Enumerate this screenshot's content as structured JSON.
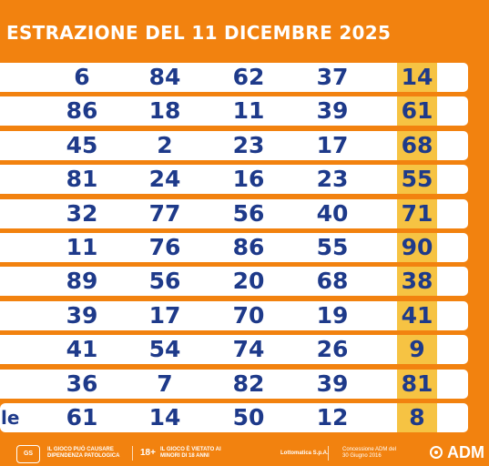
{
  "title": "ESTRAZIONE DEL 11 DICEMBRE 2025",
  "rows": [
    {
      "label": "",
      "numbers": [
        "6",
        "84",
        "62",
        "37"
      ],
      "highlight": "14"
    },
    {
      "label": "",
      "numbers": [
        "86",
        "18",
        "11",
        "39"
      ],
      "highlight": "61"
    },
    {
      "label": "",
      "numbers": [
        "45",
        "2",
        "23",
        "17"
      ],
      "highlight": "68"
    },
    {
      "label": "",
      "numbers": [
        "81",
        "24",
        "16",
        "23"
      ],
      "highlight": "55"
    },
    {
      "label": "",
      "numbers": [
        "32",
        "77",
        "56",
        "40"
      ],
      "highlight": "71"
    },
    {
      "label": "",
      "numbers": [
        "11",
        "76",
        "86",
        "55"
      ],
      "highlight": "90"
    },
    {
      "label": "",
      "numbers": [
        "89",
        "56",
        "20",
        "68"
      ],
      "highlight": "38"
    },
    {
      "label": "",
      "numbers": [
        "39",
        "17",
        "70",
        "19"
      ],
      "highlight": "41"
    },
    {
      "label": "",
      "numbers": [
        "41",
        "54",
        "74",
        "26"
      ],
      "highlight": "9"
    },
    {
      "label": "",
      "numbers": [
        "36",
        "7",
        "82",
        "39"
      ],
      "highlight": "81"
    },
    {
      "label": "le",
      "numbers": [
        "61",
        "14",
        "50",
        "12"
      ],
      "highlight": "8"
    }
  ],
  "footer": {
    "logo": "Gioca Sicuro",
    "warning1": "IL GIOCO PUÒ CAUSARE DIPENDENZA PATOLOGICA",
    "age_badge": "18+",
    "warning2": "IL GIOCO È VIETATO AI MINORI DI 18 ANNI",
    "company": "Lottomatica S.p.A.",
    "concession": "Concessione ADM del 30 Giugno 2016",
    "brand": "ADM"
  },
  "colors": {
    "background": "#f2820f",
    "row": "#ffffff",
    "number": "#1e3a8a",
    "highlight": "#f6c343"
  }
}
